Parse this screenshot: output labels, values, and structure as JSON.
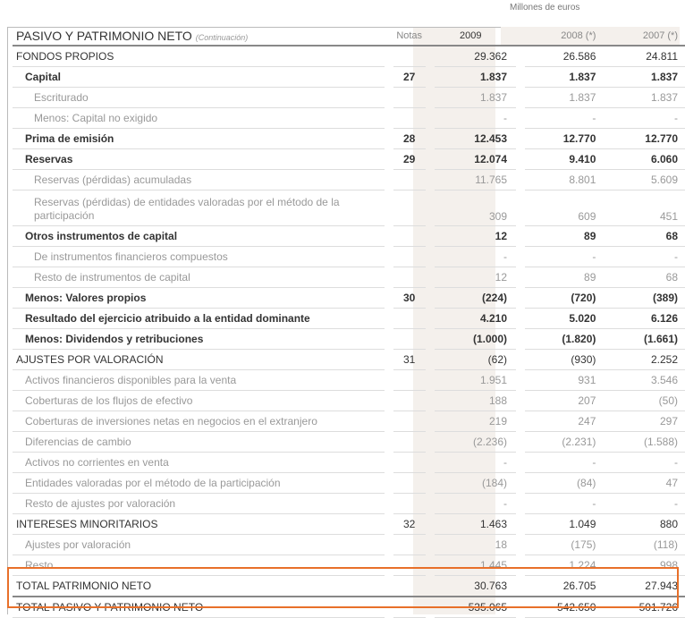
{
  "units": "Millones de euros",
  "header": {
    "title": "PASIVO Y PATRIMONIO NETO",
    "subtitle": "(Continuación)",
    "notas": "Notas",
    "y2009": "2009",
    "y2008": "2008 (*)",
    "y2007": "2007 (*)"
  },
  "highlight_color": "#e8702a",
  "rows": [
    {
      "label": "FONDOS PROPIOS",
      "nota": "",
      "v2009": "29.362",
      "v2008": "26.586",
      "v2007": "24.811"
    },
    {
      "label": "Capital",
      "nota": "27",
      "v2009": "1.837",
      "v2008": "1.837",
      "v2007": "1.837"
    },
    {
      "label": "Escriturado",
      "nota": "",
      "v2009": "1.837",
      "v2008": "1.837",
      "v2007": "1.837"
    },
    {
      "label": "Menos: Capital no exigido",
      "nota": "",
      "v2009": "-",
      "v2008": "-",
      "v2007": "-"
    },
    {
      "label": "Prima de emisión",
      "nota": "28",
      "v2009": "12.453",
      "v2008": "12.770",
      "v2007": "12.770"
    },
    {
      "label": "Reservas",
      "nota": "29",
      "v2009": "12.074",
      "v2008": "9.410",
      "v2007": "6.060"
    },
    {
      "label": "Reservas (pérdidas) acumuladas",
      "nota": "",
      "v2009": "11.765",
      "v2008": "8.801",
      "v2007": "5.609"
    },
    {
      "label": "Reservas (pérdidas) de entidades valoradas por el método de la participación",
      "nota": "",
      "v2009": "309",
      "v2008": "609",
      "v2007": "451"
    },
    {
      "label": "Otros instrumentos de capital",
      "nota": "",
      "v2009": "12",
      "v2008": "89",
      "v2007": "68"
    },
    {
      "label": "De instrumentos financieros compuestos",
      "nota": "",
      "v2009": "-",
      "v2008": "-",
      "v2007": "-"
    },
    {
      "label": "Resto de instrumentos de capital",
      "nota": "",
      "v2009": "12",
      "v2008": "89",
      "v2007": "68"
    },
    {
      "label": "Menos: Valores propios",
      "nota": "30",
      "v2009": "(224)",
      "v2008": "(720)",
      "v2007": "(389)"
    },
    {
      "label": "Resultado del ejercicio atribuido a la entidad dominante",
      "nota": "",
      "v2009": "4.210",
      "v2008": "5.020",
      "v2007": "6.126"
    },
    {
      "label": "Menos: Dividendos y retribuciones",
      "nota": "",
      "v2009": "(1.000)",
      "v2008": "(1.820)",
      "v2007": "(1.661)"
    },
    {
      "label": "AJUSTES POR VALORACIÓN",
      "nota": "31",
      "v2009": "(62)",
      "v2008": "(930)",
      "v2007": "2.252"
    },
    {
      "label": "Activos financieros disponibles para la venta",
      "nota": "",
      "v2009": "1.951",
      "v2008": "931",
      "v2007": "3.546"
    },
    {
      "label": "Coberturas de los flujos de efectivo",
      "nota": "",
      "v2009": "188",
      "v2008": "207",
      "v2007": "(50)"
    },
    {
      "label": "Coberturas de inversiones netas en negocios en el extranjero",
      "nota": "",
      "v2009": "219",
      "v2008": "247",
      "v2007": "297"
    },
    {
      "label": "Diferencias de cambio",
      "nota": "",
      "v2009": "(2.236)",
      "v2008": "(2.231)",
      "v2007": "(1.588)"
    },
    {
      "label": "Activos no corrientes en venta",
      "nota": "",
      "v2009": "-",
      "v2008": "-",
      "v2007": "-"
    },
    {
      "label": "Entidades valoradas por el método de la participación",
      "nota": "",
      "v2009": "(184)",
      "v2008": "(84)",
      "v2007": "47"
    },
    {
      "label": "Resto de ajustes por valoración",
      "nota": "",
      "v2009": "-",
      "v2008": "-",
      "v2007": "-"
    },
    {
      "label": "INTERESES MINORITARIOS",
      "nota": "32",
      "v2009": "1.463",
      "v2008": "1.049",
      "v2007": "880"
    },
    {
      "label": "Ajustes por valoración",
      "nota": "",
      "v2009": "18",
      "v2008": "(175)",
      "v2007": "(118)"
    },
    {
      "label": "Resto",
      "nota": "",
      "v2009": "1.445",
      "v2008": "1.224",
      "v2007": "998"
    },
    {
      "label": "TOTAL PATRIMONIO NETO",
      "nota": "",
      "v2009": "30.763",
      "v2008": "26.705",
      "v2007": "27.943"
    },
    {
      "label": "TOTAL PASIVO Y PATRIMONIO NETO",
      "nota": "",
      "v2009": "535.065",
      "v2008": "542.650",
      "v2007": "501.726"
    }
  ]
}
